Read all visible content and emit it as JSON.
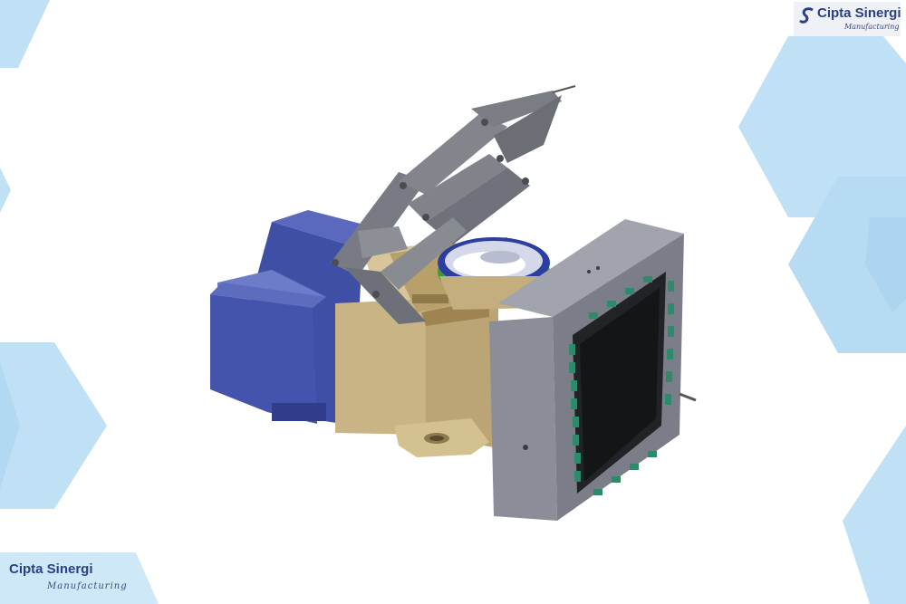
{
  "brand": {
    "top": {
      "name": "Cipta Sinergi",
      "tagline": "Manufacturing"
    },
    "bottom": {
      "name": "Cipta Sinergi",
      "tagline": "Manufacturing"
    }
  },
  "colors": {
    "hexagon": "#bfe0f5",
    "hexagon_dark": "#a9d3ee",
    "motor_blue": "#3f4fa6",
    "housing_tan": "#c9b486",
    "frame_grey": "#8b8e98",
    "arm_grey": "#74777e",
    "ring_green": "#3e9a3a",
    "clamp_teal": "#2f8a6c",
    "logo_navy": "#2a3f86"
  },
  "icons": [
    "cipta-sinergi-logo-mark"
  ]
}
